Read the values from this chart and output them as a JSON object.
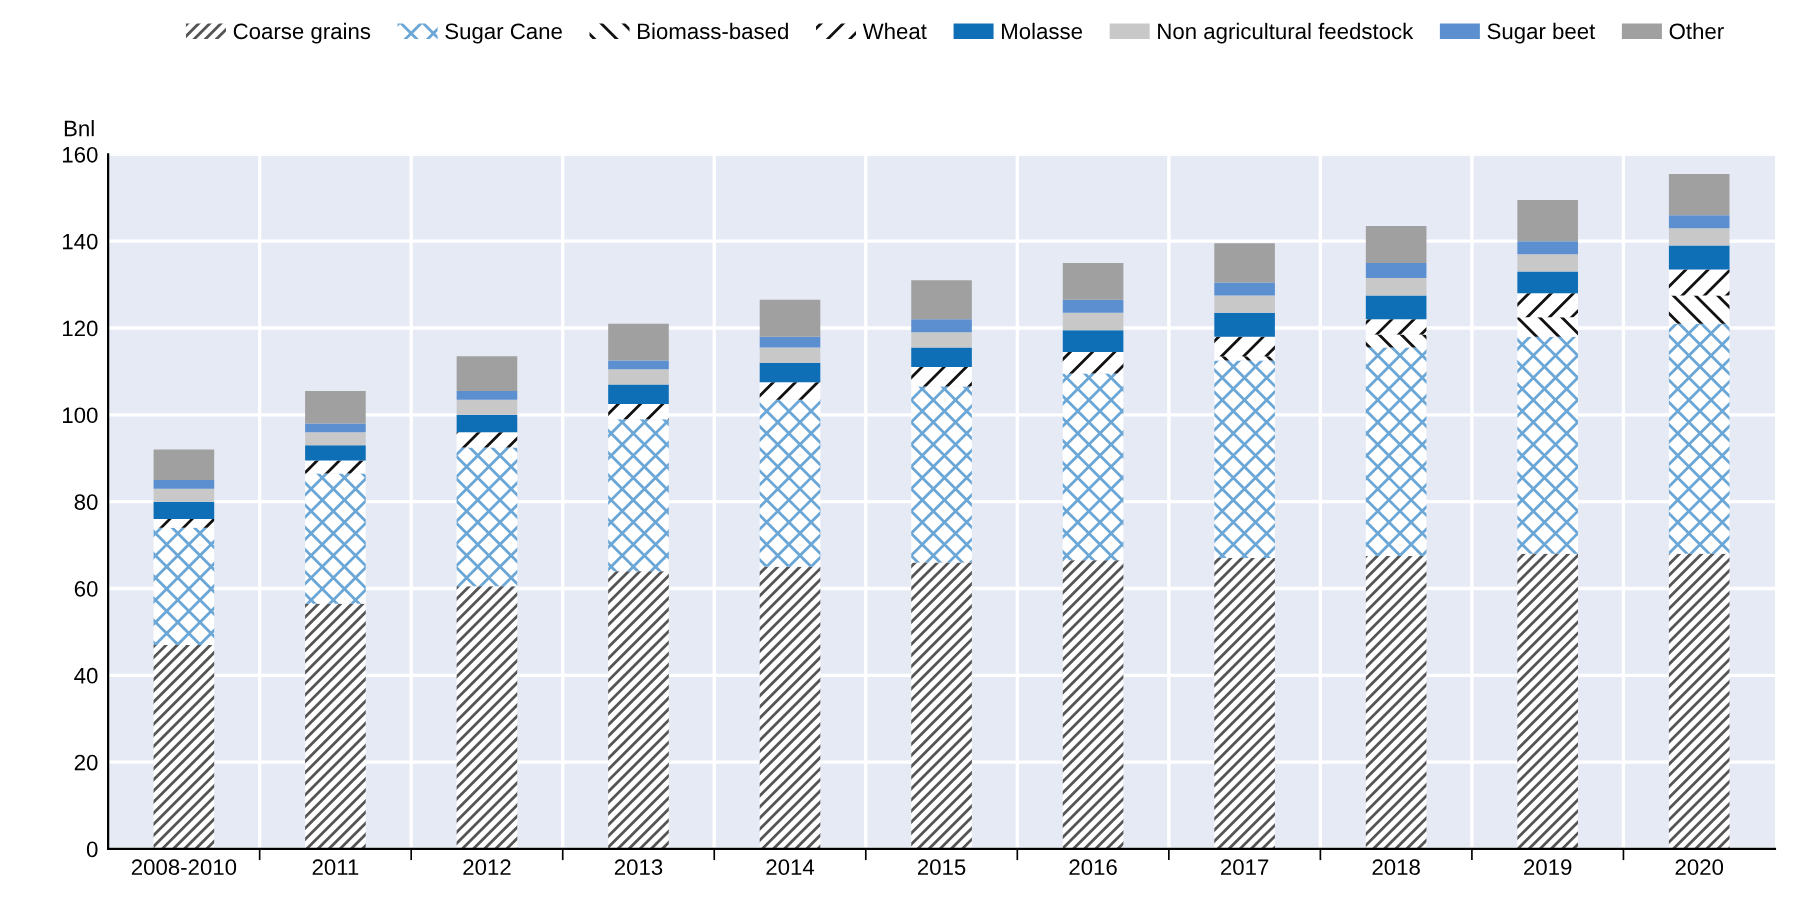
{
  "chart_data": {
    "type": "bar",
    "stacked": true,
    "ylabel": "Bnl",
    "categories": [
      "2008-2010",
      "2011",
      "2012",
      "2013",
      "2014",
      "2015",
      "2016",
      "2017",
      "2018",
      "2019",
      "2020"
    ],
    "series": [
      {
        "name": "Coarse grains",
        "color": "#555555",
        "values": [
          47,
          56.5,
          60.5,
          64,
          65,
          66,
          66.5,
          67,
          67.5,
          68,
          68
        ]
      },
      {
        "name": "Sugar Cane",
        "color": "#6aa6d6",
        "values": [
          27,
          30,
          32,
          35,
          38.5,
          40.5,
          43,
          45.5,
          48,
          50,
          53
        ]
      },
      {
        "name": "Biomass-based",
        "color": "#111111",
        "values": [
          0,
          0,
          0,
          0,
          0,
          0,
          0,
          1,
          3,
          4.5,
          6.5
        ]
      },
      {
        "name": "Wheat",
        "color": "#111111",
        "values": [
          2,
          3,
          3.5,
          3.5,
          4,
          4.5,
          5,
          4.5,
          3.5,
          5.5,
          6
        ]
      },
      {
        "name": "Molasse",
        "color": "#0e6fb6",
        "values": [
          4,
          3.5,
          4,
          4.5,
          4.5,
          4.5,
          5,
          5.5,
          5.5,
          5,
          5.5
        ]
      },
      {
        "name": "Non agricultural feedstock",
        "color": "#c8c8c8",
        "values": [
          3,
          3,
          3.5,
          3.5,
          3.5,
          3.5,
          4,
          4,
          4,
          4,
          4
        ]
      },
      {
        "name": "Sugar beet",
        "color": "#5b8fd0",
        "values": [
          2,
          2,
          2,
          2,
          2.5,
          3,
          3,
          3,
          3.5,
          3,
          3
        ]
      },
      {
        "name": "Other",
        "color": "#a0a0a0",
        "values": [
          7,
          7.5,
          8,
          8.5,
          8.5,
          9,
          8.5,
          9,
          8.5,
          9.5,
          9.5
        ]
      }
    ],
    "ylim": [
      0,
      160
    ],
    "yticks": [
      0,
      20,
      40,
      60,
      80,
      100,
      120,
      140,
      160
    ],
    "grid": true,
    "legend": "top"
  }
}
